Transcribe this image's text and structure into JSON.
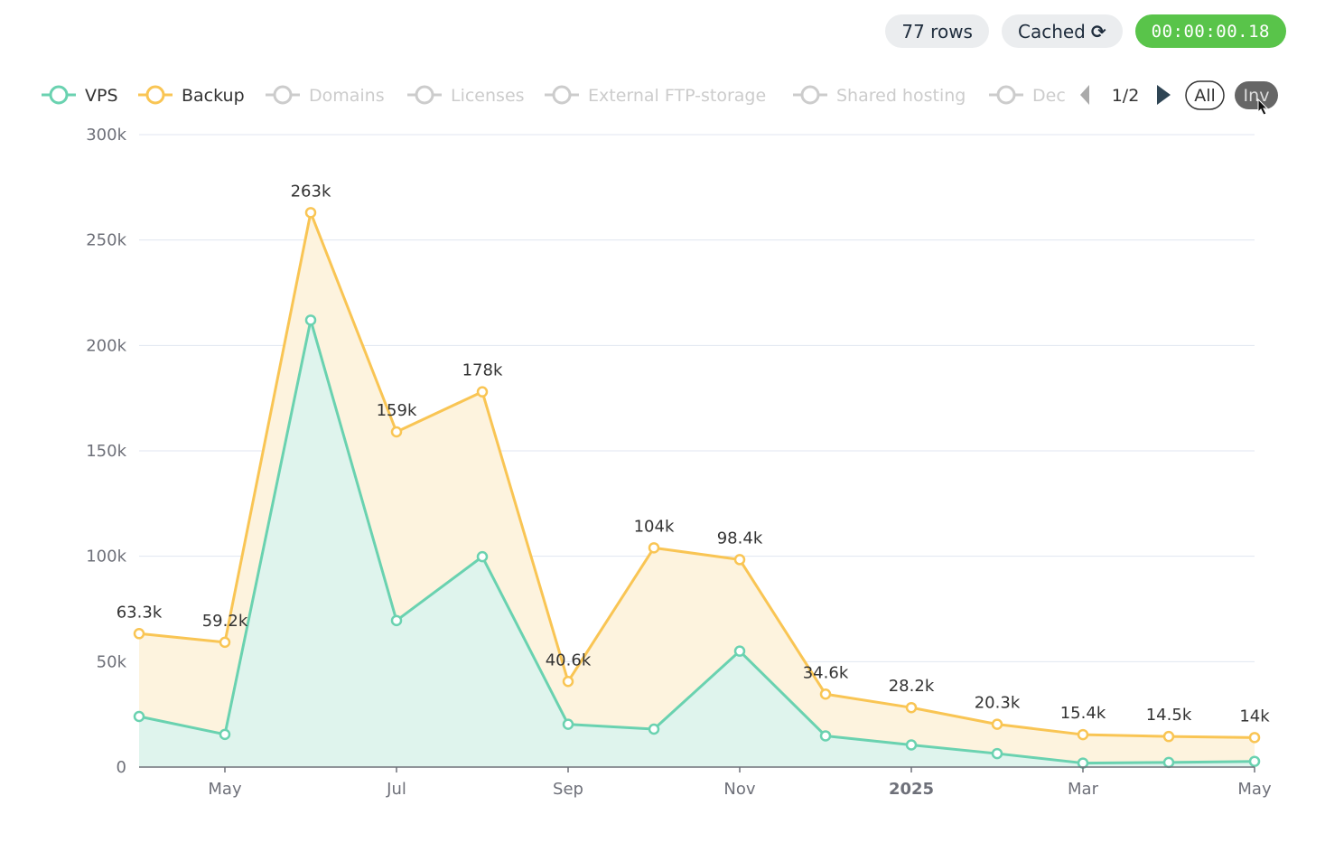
{
  "toolbar": {
    "rows": "77 rows",
    "cached": "Cached",
    "elapsed": "00:00:00.18"
  },
  "legend": {
    "items": [
      {
        "name": "VPS",
        "active": true,
        "color": "#6ad2b0"
      },
      {
        "name": "Backup",
        "active": true,
        "color": "#f9c554"
      },
      {
        "name": "Domains",
        "active": false
      },
      {
        "name": "Licenses",
        "active": false
      },
      {
        "name": "External FTP-storage",
        "active": false
      },
      {
        "name": "Shared hosting",
        "active": false
      },
      {
        "name": "Dec",
        "active": false
      }
    ],
    "page": "1/2",
    "all_label": "All",
    "inv_label": "Inv",
    "inactive_color": "#cccccc"
  },
  "chart_data": {
    "type": "area",
    "stacked": true,
    "x": [
      "2024-04",
      "2024-05",
      "2024-06",
      "2024-07",
      "2024-08",
      "2024-09",
      "2024-10",
      "2024-11",
      "2024-12",
      "2025-01",
      "2025-02",
      "2025-03",
      "2025-04",
      "2025-05"
    ],
    "x_tick_labels": [
      {
        "at": "2024-05",
        "label": "May",
        "bold": false
      },
      {
        "at": "2024-07",
        "label": "Jul",
        "bold": false
      },
      {
        "at": "2024-09",
        "label": "Sep",
        "bold": false
      },
      {
        "at": "2024-11",
        "label": "Nov",
        "bold": false
      },
      {
        "at": "2025-01",
        "label": "2025",
        "bold": true
      },
      {
        "at": "2025-03",
        "label": "Mar",
        "bold": false
      },
      {
        "at": "2025-05",
        "label": "May",
        "bold": false
      }
    ],
    "series": [
      {
        "name": "VPS",
        "color": "#6ad2b0",
        "fill": "#dff4ed",
        "values": [
          24000,
          15500,
          212000,
          69500,
          99800,
          20300,
          18000,
          55000,
          14800,
          10500,
          6400,
          1900,
          2200,
          2700
        ]
      },
      {
        "name": "Backup",
        "color": "#f9c554",
        "fill": "#fdf3de",
        "values": [
          39300,
          43700,
          51000,
          89500,
          78200,
          20300,
          86000,
          43400,
          19800,
          17700,
          13900,
          13500,
          12300,
          11300
        ]
      }
    ],
    "totals": [
      63300,
      59200,
      263000,
      159000,
      178000,
      40600,
      104000,
      98400,
      34600,
      28200,
      20300,
      15400,
      14500,
      14000
    ],
    "total_labels": [
      "63.3k",
      "59.2k",
      "263k",
      "159k",
      "178k",
      "40.6k",
      "104k",
      "98.4k",
      "34.6k",
      "28.2k",
      "20.3k",
      "15.4k",
      "14.5k",
      "14k"
    ],
    "y_ticks": [
      0,
      50000,
      100000,
      150000,
      200000,
      250000,
      300000
    ],
    "y_tick_labels": [
      "0",
      "50k",
      "100k",
      "150k",
      "200k",
      "250k",
      "300k"
    ],
    "ylim": [
      0,
      300000
    ],
    "grid": true,
    "legend_position": "top"
  }
}
